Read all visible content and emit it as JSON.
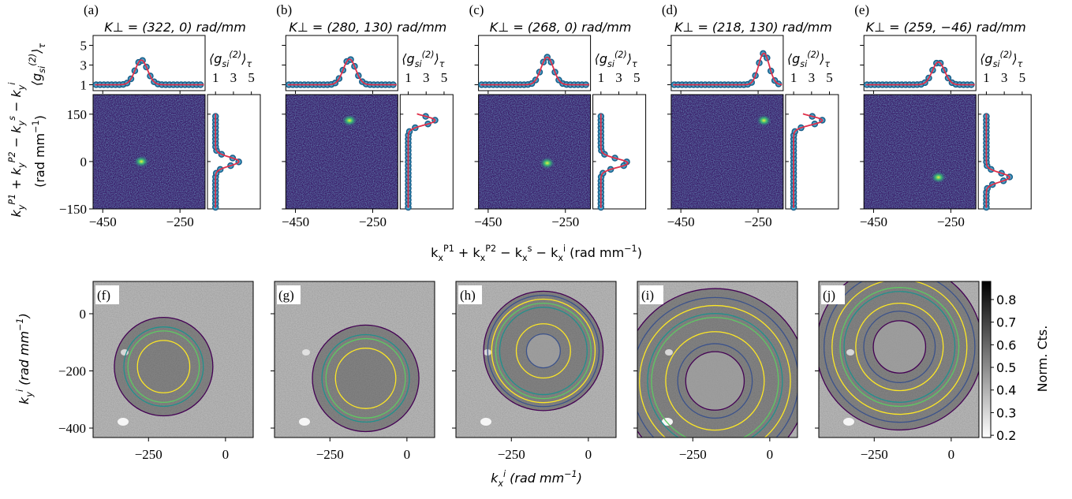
{
  "top_panels": [
    {
      "label": "(a)",
      "title": "K⊥ = (322, 0) rad/mm",
      "peak": {
        "kx": -350,
        "ky": 0
      },
      "x_profile": {
        "center": -350,
        "height": 3.5,
        "width": 16
      },
      "y_profile": {
        "center": 0,
        "height": 3.6,
        "width": 14
      }
    },
    {
      "label": "(b)",
      "title": "K⊥ = (280, 130) rad/mm",
      "peak": {
        "kx": -310,
        "ky": 130
      },
      "x_profile": {
        "center": -310,
        "height": 3.6,
        "width": 16
      },
      "y_profile": {
        "center": 130,
        "height": 4.0,
        "width": 14
      }
    },
    {
      "label": "(c)",
      "title": "K⊥ = (268, 0) rad/mm",
      "peak": {
        "kx": -297,
        "ky": -5
      },
      "x_profile": {
        "center": -297,
        "height": 3.8,
        "width": 16
      },
      "y_profile": {
        "center": -5,
        "height": 4.0,
        "width": 14
      }
    },
    {
      "label": "(d)",
      "title": "K⊥ = (218, 130) rad/mm",
      "peak": {
        "kx": -235,
        "ky": 130
      },
      "x_profile": {
        "center": -235,
        "height": 4.2,
        "width": 14
      },
      "y_profile": {
        "center": 130,
        "height": 4.2,
        "width": 14
      }
    },
    {
      "label": "(e)",
      "title": "K⊥ = (259, −46) rad/mm",
      "peak": {
        "kx": -282,
        "ky": -50
      },
      "x_profile": {
        "center": -282,
        "height": 3.3,
        "width": 16
      },
      "y_profile": {
        "center": -50,
        "height": 3.6,
        "width": 14
      }
    }
  ],
  "top_axes": {
    "xlim": [
      -475,
      -185
    ],
    "xticks": [
      {
        "value": -450,
        "label": "−450"
      },
      {
        "value": -250,
        "label": "−250"
      }
    ],
    "ylim": [
      -150,
      212
    ],
    "yticks": [
      {
        "value": -150,
        "label": "−150"
      },
      0,
      150
    ],
    "glim": [
      0.4,
      6
    ],
    "gticks": [
      1,
      3,
      5
    ],
    "g_xlim": [
      0.1,
      6
    ],
    "ylabel": "k_{y}^{P1} + k_{y}^{P2} − k_{y}^{s} − k_{y}^{i}",
    "ylabel_unit": "(rad mm^{−1})",
    "glabel": "⟨g_{si}^{(2)}⟩_{τ}",
    "xlabel": "k_{x}^{P1} + k_{x}^{P2} − k_{x}^{s} − k_{x}^{i} (rad mm^{−1})"
  },
  "bottom_panels": [
    {
      "label": "(f)",
      "center": [
        -201,
        -185
      ],
      "rings": [
        {
          "r": 85,
          "color": "#fde725"
        },
        {
          "r": 116,
          "color": "#5ec962"
        },
        {
          "r": 129,
          "color": "#21918c"
        },
        {
          "r": 160,
          "color": "#440154"
        }
      ]
    },
    {
      "label": "(g)",
      "center": [
        -134,
        -226
      ],
      "rings": [
        {
          "r": 98,
          "color": "#fde725"
        },
        {
          "r": 129,
          "color": "#5ec962"
        },
        {
          "r": 142,
          "color": "#21918c"
        },
        {
          "r": 173,
          "color": "#440154"
        }
      ]
    },
    {
      "label": "(h)",
      "center": [
        -146,
        -130
      ],
      "rings": [
        {
          "r": 55,
          "color": "#3b528b"
        },
        {
          "r": 88,
          "color": "#fde725"
        },
        {
          "r": 142,
          "color": "#21918c"
        },
        {
          "r": 155,
          "color": "#5ec962"
        },
        {
          "r": 168,
          "color": "#fde725"
        },
        {
          "r": 181,
          "color": "#3b528b"
        },
        {
          "r": 194,
          "color": "#440154"
        }
      ]
    },
    {
      "label": "(i)",
      "center": [
        -178,
        -235
      ],
      "rings": [
        {
          "r": 95,
          "color": "#440154"
        },
        {
          "r": 121,
          "color": "#3b528b"
        },
        {
          "r": 160,
          "color": "#fde725"
        },
        {
          "r": 206,
          "color": "#5ec962"
        },
        {
          "r": 219,
          "color": "#21918c"
        },
        {
          "r": 245,
          "color": "#fde725"
        },
        {
          "r": 271,
          "color": "#3b528b"
        },
        {
          "r": 300,
          "color": "#440154"
        }
      ]
    },
    {
      "label": "(j)",
      "center": [
        -168,
        -116
      ],
      "rings": [
        {
          "r": 85,
          "color": "#440154"
        },
        {
          "r": 116,
          "color": "#3b528b"
        },
        {
          "r": 142,
          "color": "#fde725"
        },
        {
          "r": 180,
          "color": "#21918c"
        },
        {
          "r": 193,
          "color": "#5ec962"
        },
        {
          "r": 219,
          "color": "#fde725"
        },
        {
          "r": 245,
          "color": "#3b528b"
        },
        {
          "r": 270,
          "color": "#440154"
        }
      ]
    }
  ],
  "bottom_axes": {
    "xlim": [
      -430,
      90
    ],
    "xticks": [
      {
        "value": -250,
        "label": "−250"
      },
      0
    ],
    "ylim": [
      -433,
      113
    ],
    "yticks": [
      0,
      {
        "value": -200,
        "label": "−200"
      },
      {
        "value": -400,
        "label": "−400"
      }
    ],
    "ylabel": "k_{y}^{i} (rad mm^{−1})",
    "xlabel": "k_{x}^{i} (rad mm^{−1})"
  },
  "colorbar": {
    "lim": [
      0.19,
      0.88
    ],
    "ticks": [
      0.2,
      0.3,
      0.4,
      0.5,
      0.6,
      0.7,
      0.8
    ],
    "label": "Norm. Cts."
  }
}
